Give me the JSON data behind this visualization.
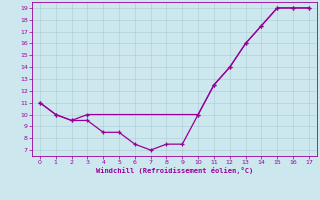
{
  "line1_x": [
    0,
    1,
    2,
    3,
    4,
    5,
    6,
    7,
    8,
    9,
    10,
    11,
    12,
    13,
    14,
    15,
    16,
    17
  ],
  "line1_y": [
    11,
    10,
    9.5,
    9.5,
    8.5,
    8.5,
    7.5,
    7,
    7.5,
    7.5,
    10,
    12.5,
    14,
    16,
    17.5,
    19,
    19,
    19
  ],
  "line2_x": [
    0,
    1,
    2,
    3,
    10,
    11,
    12,
    13,
    14,
    15,
    16,
    17
  ],
  "line2_y": [
    11,
    10,
    9.5,
    10,
    10,
    12.5,
    14,
    16,
    17.5,
    19,
    19,
    19
  ],
  "color": "#990099",
  "xlabel": "Windchill (Refroidissement éolien,°C)",
  "xlim": [
    -0.5,
    17.5
  ],
  "ylim": [
    6.5,
    19.5
  ],
  "yticks": [
    7,
    8,
    9,
    10,
    11,
    12,
    13,
    14,
    15,
    16,
    17,
    18,
    19
  ],
  "xticks": [
    0,
    1,
    2,
    3,
    4,
    5,
    6,
    7,
    8,
    9,
    10,
    11,
    12,
    13,
    14,
    15,
    16,
    17
  ],
  "bg_color": "#cce8ee",
  "grid_color": "#b0d0d8"
}
